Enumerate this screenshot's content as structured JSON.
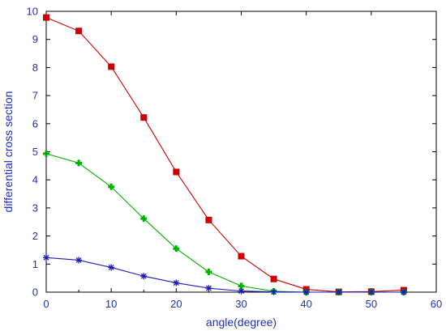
{
  "chart_data": {
    "type": "line",
    "title": "",
    "xlabel": "angle(degree)",
    "ylabel": "differential cross section",
    "xlim": [
      0,
      60
    ],
    "ylim": [
      0,
      10
    ],
    "xticks": [
      "0",
      "10",
      "20",
      "30",
      "40",
      "50",
      "60"
    ],
    "yticks": [
      "0",
      "1",
      "2",
      "3",
      "4",
      "5",
      "6",
      "7",
      "8",
      "9",
      "10"
    ],
    "grid": false,
    "legend": "none",
    "axis_color": "#1f2fbf",
    "x": [
      0,
      5,
      10,
      15,
      20,
      25,
      30,
      35,
      40,
      45,
      50,
      55
    ],
    "series": [
      {
        "color": "#cc0000",
        "marker": "square",
        "values": [
          9.78,
          9.3,
          8.03,
          6.22,
          4.28,
          2.57,
          1.28,
          0.47,
          0.1,
          0.01,
          0.02,
          0.07
        ]
      },
      {
        "color": "#00b000",
        "marker": "plus",
        "values": [
          4.93,
          4.6,
          3.75,
          2.62,
          1.55,
          0.72,
          0.22,
          0.03,
          0.0,
          0.0,
          0.0,
          0.0
        ]
      },
      {
        "color": "#1a1ac0",
        "marker": "star",
        "values": [
          1.23,
          1.14,
          0.88,
          0.57,
          0.33,
          0.14,
          0.04,
          0.01,
          0.0,
          0.0,
          0.0,
          0.0
        ]
      }
    ]
  }
}
